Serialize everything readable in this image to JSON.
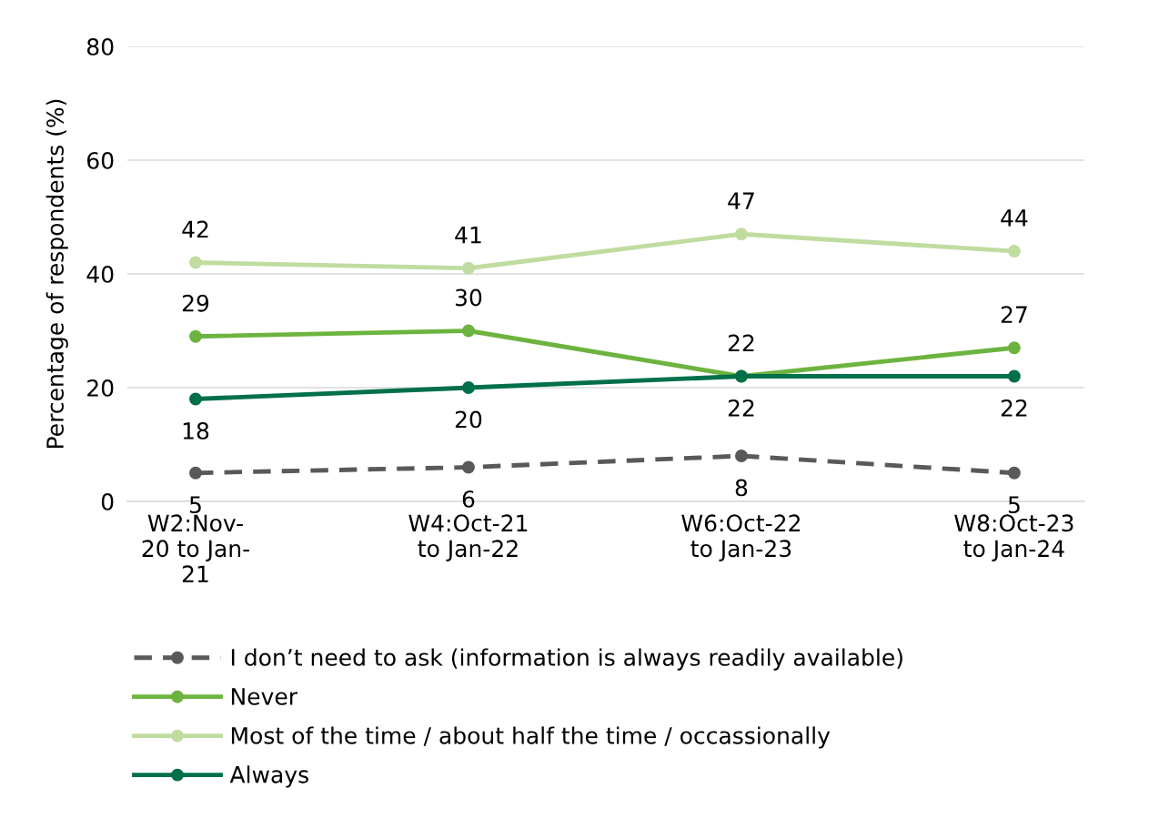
{
  "chart_data": {
    "type": "line",
    "ylabel": "Percentage of respondents (%)",
    "categories": [
      "W2:Nov-\n20 to Jan-\n21",
      "W4:Oct-21\nto Jan-22",
      "W6:Oct-22\nto Jan-23",
      "W8:Oct-23\nto Jan-24"
    ],
    "series": [
      {
        "name": "I don’t need to ask (information is always readily available)",
        "color": "#595959",
        "values": [
          5,
          6,
          8,
          5
        ],
        "line_style": "dashed"
      },
      {
        "name": "Never",
        "color": "#6db33f",
        "values": [
          29,
          30,
          22,
          27
        ]
      },
      {
        "name": "Most of the time / about half the time / occassionally",
        "color": "#c0dca0",
        "values": [
          42,
          41,
          47,
          44
        ]
      },
      {
        "name": "Always",
        "color": "#00704a",
        "values": [
          18,
          20,
          22,
          22
        ]
      }
    ],
    "ylim": [
      0,
      80
    ],
    "yticks": [
      0,
      20,
      40,
      60,
      80
    ],
    "grid": "y",
    "legend": "bottom",
    "marker": "circle",
    "line_style": "solid",
    "data_labels": true
  }
}
